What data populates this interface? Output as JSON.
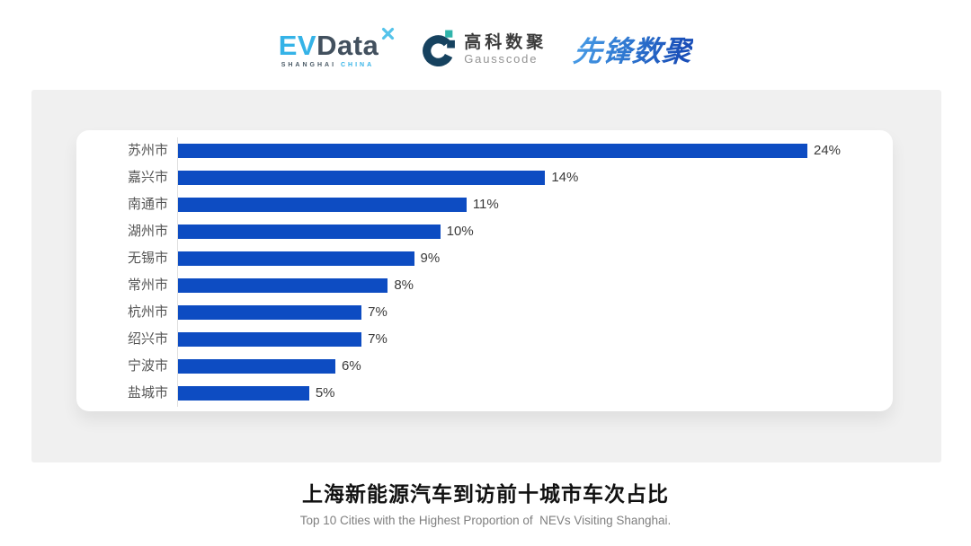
{
  "header": {
    "evdata": {
      "ev": "EV",
      "data": "Data",
      "sub_country": "SHANGHAI",
      "sub_region": "CHINA"
    },
    "gausscode": {
      "name_cn": "高科数聚",
      "name_en": "Gausscode"
    },
    "xianfeng": {
      "name": "先锋数聚"
    }
  },
  "chart_data": {
    "type": "bar",
    "orientation": "horizontal",
    "categories": [
      "苏州市",
      "嘉兴市",
      "南通市",
      "湖州市",
      "无锡市",
      "常州市",
      "杭州市",
      "绍兴市",
      "宁波市",
      "盐城市"
    ],
    "values": [
      24,
      14,
      11,
      10,
      9,
      8,
      7,
      7,
      6,
      5
    ],
    "value_labels": [
      "24%",
      "14%",
      "11%",
      "10%",
      "9%",
      "8%",
      "7%",
      "7%",
      "6%",
      "5%"
    ],
    "value_suffix": "%",
    "xlim": [
      0,
      24
    ],
    "grid": false,
    "legend": false,
    "bar_color": "#0d4cc2",
    "title": "上海新能源汽车到访前十城市车次占比",
    "subtitle": "Top 10 Cities with the Highest Proportion of  NEVs Visiting Shanghai."
  },
  "colors": {
    "bar": "#0d4cc2",
    "panel_bg": "#f0f0f0",
    "card_bg": "#ffffff",
    "axis_line": "#e0e0e0",
    "category_label": "#555555",
    "value_label": "#3a3a3a",
    "title": "#111111",
    "subtitle": "#7f7f7f",
    "evdata_blue": "#35b3e7",
    "evdata_dark": "#42505e",
    "gauss_navy": "#16425f",
    "gauss_teal": "#2fb4ab",
    "xianfeng_blue_start": "#4a9fe8",
    "xianfeng_blue_end": "#1a4fb8"
  }
}
